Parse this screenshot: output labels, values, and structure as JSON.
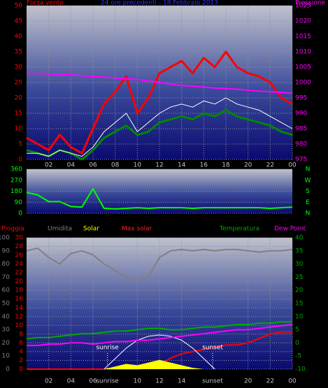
{
  "chart_data": [
    {
      "type": "line",
      "title": "24 ore precedenti - 18 Febbraio 2013",
      "ylabel": "Forza vento",
      "ycolor": "#ff0000",
      "y2label": "Pressione",
      "y2color": "#ff00ff",
      "x": [
        0,
        1,
        2,
        3,
        4,
        5,
        6,
        7,
        8,
        9,
        10,
        11,
        12,
        13,
        14,
        15,
        16,
        17,
        18,
        19,
        20,
        21,
        22,
        23,
        24
      ],
      "xlim": [
        0,
        24
      ],
      "xticks": [
        {
          "value": 2,
          "label": "02"
        },
        {
          "value": 4,
          "label": "04"
        },
        {
          "value": 6,
          "label": "06"
        },
        {
          "value": 8,
          "label": "08"
        },
        10,
        12,
        14,
        16,
        18,
        20,
        22,
        {
          "value": 24,
          "label": "00"
        }
      ],
      "ylim": [
        0,
        50
      ],
      "yticks": [
        0,
        5,
        10,
        15,
        20,
        25,
        30,
        35,
        40,
        45,
        50
      ],
      "y2lim": [
        975,
        1025
      ],
      "y2ticks": [
        975,
        980,
        985,
        990,
        995,
        1000,
        1005,
        1010,
        1015,
        1020,
        1025
      ],
      "grid": true,
      "series": [
        {
          "color": "#ff0000",
          "width": 3,
          "values": [
            7,
            5,
            3,
            8,
            4,
            2,
            10,
            18,
            22,
            27,
            15,
            20,
            28,
            30,
            32,
            28,
            33,
            30,
            35,
            30,
            28,
            27,
            25,
            20,
            18
          ]
        },
        {
          "color": "#008800",
          "width": 3,
          "values": [
            3,
            2,
            1,
            3,
            2,
            0,
            3,
            7,
            9,
            11,
            8,
            9,
            12,
            13,
            14,
            13,
            15,
            14,
            16,
            14,
            13,
            12,
            11,
            9,
            8
          ]
        },
        {
          "color": "#ffffff",
          "width": 1,
          "values": [
            2,
            2,
            1,
            3,
            2,
            1,
            4,
            9,
            12,
            15,
            9,
            12,
            15,
            17,
            18,
            17,
            19,
            18,
            20,
            18,
            17,
            16,
            14,
            12,
            10
          ]
        },
        {
          "color": "#ff00ff",
          "width": 2,
          "axis": "y2",
          "values": [
            1003,
            1002.9,
            1002.8,
            1002.6,
            1002.5,
            1002.2,
            1002,
            1001.8,
            1001.5,
            1001.2,
            1001,
            1000.5,
            1000,
            999.5,
            999,
            998.8,
            998.5,
            998.2,
            998,
            997.8,
            997.5,
            997.2,
            997,
            996.8,
            996.5
          ]
        }
      ]
    },
    {
      "type": "line",
      "ycolor": "#00ff00",
      "y2color": "#00ff00",
      "x": [
        0,
        1,
        2,
        3,
        4,
        5,
        6,
        7,
        8,
        9,
        10,
        11,
        12,
        13,
        14,
        15,
        16,
        17,
        18,
        19,
        20,
        21,
        22,
        23,
        24
      ],
      "xlim": [
        0,
        24
      ],
      "ylim": [
        0,
        360
      ],
      "yticks": [
        0,
        90,
        180,
        270,
        360
      ],
      "y2lim": [
        0,
        360
      ],
      "y2ticks": [
        {
          "value": 360,
          "label": "N"
        },
        {
          "value": 270,
          "label": "W"
        },
        {
          "value": 180,
          "label": "S"
        },
        {
          "value": 90,
          "label": "E"
        },
        {
          "value": 0,
          "label": "N"
        }
      ],
      "grid": true,
      "series": [
        {
          "color": "#00ff00",
          "width": 2,
          "values": [
            170,
            150,
            95,
            95,
            55,
            50,
            200,
            40,
            35,
            40,
            45,
            40,
            45,
            45,
            45,
            40,
            45,
            45,
            45,
            45,
            45,
            45,
            40,
            45,
            50
          ]
        }
      ]
    },
    {
      "type": "line",
      "ycolor": "#808080",
      "y3color": "#ff0000",
      "y2color": "#00aa00",
      "x": [
        0,
        1,
        2,
        3,
        4,
        5,
        6,
        7,
        8,
        9,
        10,
        11,
        12,
        13,
        14,
        15,
        16,
        17,
        18,
        19,
        20,
        21,
        22,
        23,
        24
      ],
      "xlim": [
        0,
        24
      ],
      "xticks": [
        {
          "value": 2,
          "label": "02"
        },
        {
          "value": 4,
          "label": "04"
        },
        {
          "value": 6,
          "label": "06"
        },
        10,
        12,
        14,
        20,
        22,
        {
          "value": 24,
          "label": "00"
        }
      ],
      "ylim": [
        0,
        100
      ],
      "yticks": [
        0,
        10,
        20,
        30,
        40,
        50,
        60,
        70,
        80,
        90,
        100
      ],
      "y3lim": [
        0,
        30
      ],
      "y3ticks": [
        0,
        2,
        4,
        6,
        8,
        10,
        12,
        14,
        16,
        18,
        20,
        22,
        24,
        26,
        28,
        30
      ],
      "y2lim": [
        -10,
        40
      ],
      "y2ticks": [
        -10,
        -5,
        0,
        5,
        10,
        15,
        20,
        25,
        30,
        35,
        40
      ],
      "grid": true,
      "annotations": [
        {
          "text": "sunrise",
          "x": 7.3
        },
        {
          "text": "sunset",
          "x": 16.8
        }
      ],
      "series": [
        {
          "name": "Pioggia",
          "color": "#ff0000",
          "width": 2,
          "axis": "y3",
          "values": [
            0,
            0,
            0,
            0,
            0,
            0,
            0,
            0,
            0,
            0,
            0,
            0.2,
            1,
            2.5,
            3.5,
            4,
            4.5,
            5,
            5.5,
            5.5,
            6,
            7,
            8,
            8.5,
            8.5
          ]
        },
        {
          "name": "Umidita",
          "color": "#808080",
          "width": 2,
          "values": [
            90,
            92,
            85,
            80,
            88,
            90,
            87,
            80,
            75,
            70,
            68,
            70,
            85,
            90,
            91,
            90,
            91,
            90,
            91,
            91,
            90,
            89,
            90,
            90,
            91
          ]
        },
        {
          "name": "Solar",
          "color": "#ffff00",
          "width": 1,
          "area": true,
          "values": [
            0,
            0,
            0,
            0,
            0,
            0,
            0,
            0,
            2,
            4,
            3,
            5,
            7,
            5,
            3,
            1,
            0,
            0,
            0,
            0,
            0,
            0,
            0,
            0,
            0
          ]
        },
        {
          "name": "Max solar",
          "color": "#ff2020",
          "line": "#ffffff",
          "width": 1,
          "values": [
            null,
            null,
            null,
            null,
            null,
            null,
            null,
            0,
            8,
            16,
            22,
            25,
            26,
            25,
            22,
            16,
            8,
            0,
            null,
            null,
            null,
            null,
            null,
            null,
            null
          ]
        },
        {
          "name": "Temperatura",
          "color": "#00aa00",
          "width": 2,
          "axis": "y2",
          "values": [
            1.5,
            2,
            2,
            2.5,
            3,
            3.5,
            3.5,
            4,
            4.5,
            4.5,
            5,
            5.5,
            5.5,
            5,
            5,
            5.5,
            6,
            6,
            6.5,
            7,
            7,
            7.5,
            7.5,
            8,
            8
          ]
        },
        {
          "name": "Dew Point",
          "color": "#ff00ff",
          "width": 2,
          "axis": "y2",
          "values": [
            -1,
            -1,
            -0.5,
            -0.5,
            0,
            0,
            -0.5,
            0,
            0.5,
            0.5,
            1,
            1,
            1.5,
            2,
            2.5,
            3,
            3.5,
            4,
            4.5,
            5,
            5,
            5.5,
            6,
            6.5,
            7
          ]
        }
      ]
    }
  ]
}
